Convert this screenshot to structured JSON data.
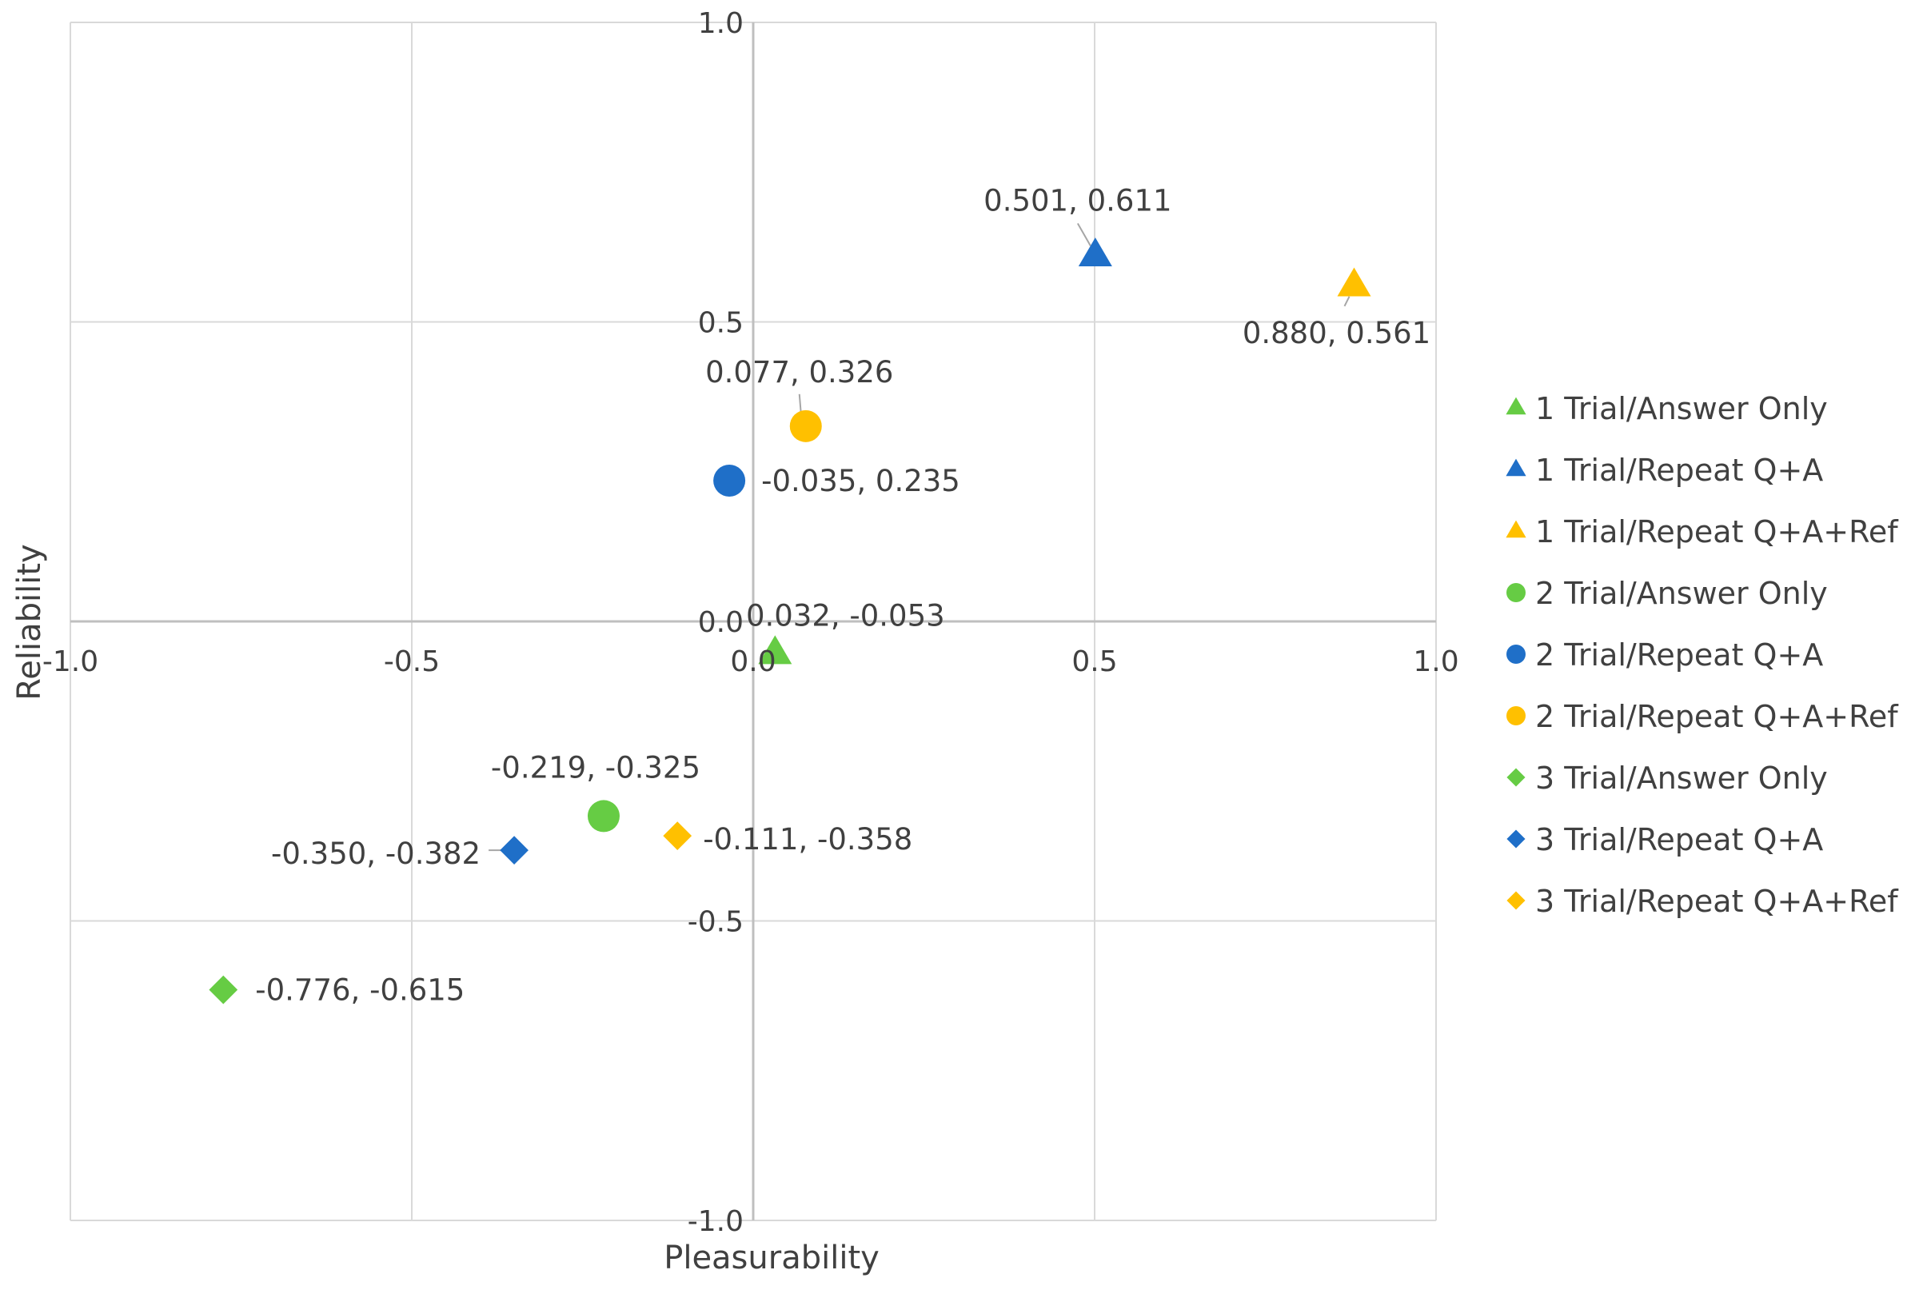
{
  "chart_data": {
    "type": "scatter",
    "title": "",
    "xlabel": "Pleasurability",
    "ylabel": "Reliability",
    "xlim": [
      -1.0,
      1.0
    ],
    "ylim": [
      -1.0,
      1.0
    ],
    "x_ticks": [
      {
        "value": -1.0,
        "label": "-1.0"
      },
      {
        "value": -0.5,
        "label": "-0.5"
      },
      {
        "value": 0.0,
        "label": "0.0"
      },
      {
        "value": 0.5,
        "label": "0.5"
      },
      {
        "value": 1.0,
        "label": "1.0"
      }
    ],
    "y_ticks": [
      {
        "value": 1.0,
        "label": "1.0"
      },
      {
        "value": 0.5,
        "label": "0.5"
      },
      {
        "value": 0.0,
        "label": "0.0"
      },
      {
        "value": -0.5,
        "label": "-0.5"
      },
      {
        "value": -1.0,
        "label": "-1.0"
      }
    ],
    "grid": true,
    "legend_position": "right",
    "series": [
      {
        "name": "1 Trial/Answer Only",
        "marker": "triangle",
        "color": "#66CC44",
        "points": [
          {
            "x": 0.032,
            "y": -0.053,
            "label": "0.032, -0.053",
            "label_pos": "top"
          }
        ]
      },
      {
        "name": "1 Trial/Repeat Q+A",
        "marker": "triangle",
        "color": "#1F6FC8",
        "points": [
          {
            "x": 0.501,
            "y": 0.611,
            "label": "0.501, 0.611",
            "label_pos": "top-left"
          }
        ]
      },
      {
        "name": "1 Trial/Repeat Q+A+Ref",
        "marker": "triangle",
        "color": "#FFC000",
        "points": [
          {
            "x": 0.88,
            "y": 0.561,
            "label": "0.880, 0.561",
            "label_pos": "below"
          }
        ]
      },
      {
        "name": "2 Trial/Answer Only",
        "marker": "circle",
        "color": "#66CC44",
        "points": [
          {
            "x": -0.219,
            "y": -0.325,
            "label": "-0.219, -0.325",
            "label_pos": "top"
          }
        ]
      },
      {
        "name": "2 Trial/Repeat Q+A",
        "marker": "circle",
        "color": "#1F6FC8",
        "points": [
          {
            "x": -0.035,
            "y": 0.235,
            "label": "-0.035, 0.235",
            "label_pos": "right"
          }
        ]
      },
      {
        "name": "2 Trial/Repeat Q+A+Ref",
        "marker": "circle",
        "color": "#FFC000",
        "points": [
          {
            "x": 0.077,
            "y": 0.326,
            "label": "0.077, 0.326",
            "label_pos": "top"
          }
        ]
      },
      {
        "name": "3 Trial/Answer Only",
        "marker": "diamond",
        "color": "#66CC44",
        "points": [
          {
            "x": -0.776,
            "y": -0.615,
            "label": "-0.776, -0.615",
            "label_pos": "right"
          }
        ]
      },
      {
        "name": "3 Trial/Repeat Q+A",
        "marker": "diamond",
        "color": "#1F6FC8",
        "points": [
          {
            "x": -0.35,
            "y": -0.382,
            "label": "-0.350, -0.382",
            "label_pos": "left"
          }
        ]
      },
      {
        "name": "3 Trial/Repeat Q+A+Ref",
        "marker": "diamond",
        "color": "#FFC000",
        "points": [
          {
            "x": -0.111,
            "y": -0.358,
            "label": "-0.111, -0.358",
            "label_pos": "right"
          }
        ]
      }
    ]
  }
}
